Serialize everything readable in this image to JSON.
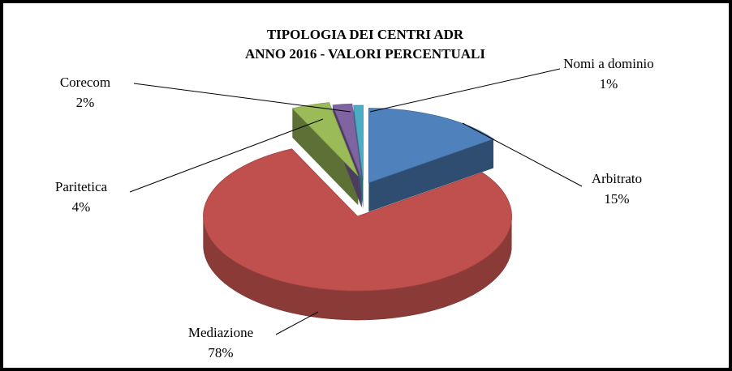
{
  "chart_data": {
    "type": "pie",
    "title": "TIPOLOGIA DEI CENTRI ADR",
    "subtitle": "ANNO 2016 - VALORI PERCENTUALI",
    "categories": [
      "Arbitrato",
      "Mediazione",
      "Paritetica",
      "Corecom",
      "Nomi a dominio"
    ],
    "values": [
      15,
      78,
      4,
      2,
      1
    ],
    "value_labels": [
      "15%",
      "78%",
      "4%",
      "2%",
      "1%"
    ],
    "colors": [
      "#4f81bd",
      "#c0504d",
      "#9bbb59",
      "#8064a2",
      "#4bacc6"
    ]
  }
}
